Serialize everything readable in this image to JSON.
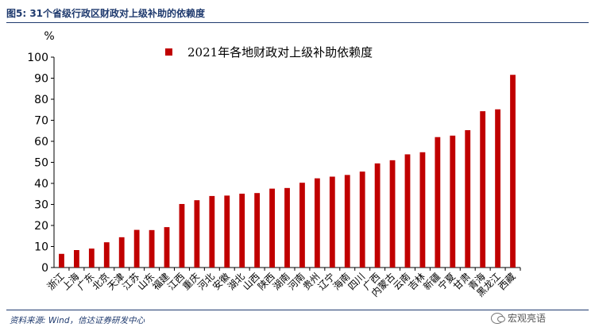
{
  "figure": {
    "title": "图5:  31个省级行政区财政对上级补助的依赖度",
    "source": "资料来源: Wind，信达证券研发中心",
    "watermark": "宏观亮语",
    "watermark_icon": "wechat-icon"
  },
  "chart_data": {
    "type": "bar",
    "ylabel": "%",
    "ylim": [
      0,
      100
    ],
    "yticks": [
      0,
      10,
      20,
      30,
      40,
      50,
      60,
      70,
      80,
      90,
      100
    ],
    "bar_color": "#c00000",
    "legend_position": "top-center",
    "grid": false,
    "categories": [
      "浙江",
      "上海",
      "广东",
      "北京",
      "天津",
      "江苏",
      "山东",
      "福建",
      "江西",
      "重庆",
      "河北",
      "安徽",
      "湖北",
      "山西",
      "陕西",
      "湖南",
      "河南",
      "贵州",
      "辽宁",
      "海南",
      "四川",
      "广西",
      "内蒙古",
      "云南",
      "吉林",
      "新疆",
      "宁夏",
      "甘肃",
      "青海",
      "黑龙江",
      "西藏"
    ],
    "series": [
      {
        "name": "2021年各地财政对上级补助依赖度",
        "values": [
          6.5,
          8.3,
          9.0,
          12.0,
          14.4,
          17.9,
          17.8,
          19.2,
          30.2,
          32.0,
          34.0,
          34.2,
          35.1,
          35.4,
          37.5,
          37.8,
          40.3,
          42.4,
          43.2,
          44.0,
          45.6,
          49.5,
          51.0,
          53.8,
          54.8,
          62.0,
          62.7,
          65.3,
          74.3,
          75.2,
          91.6
        ]
      }
    ]
  }
}
